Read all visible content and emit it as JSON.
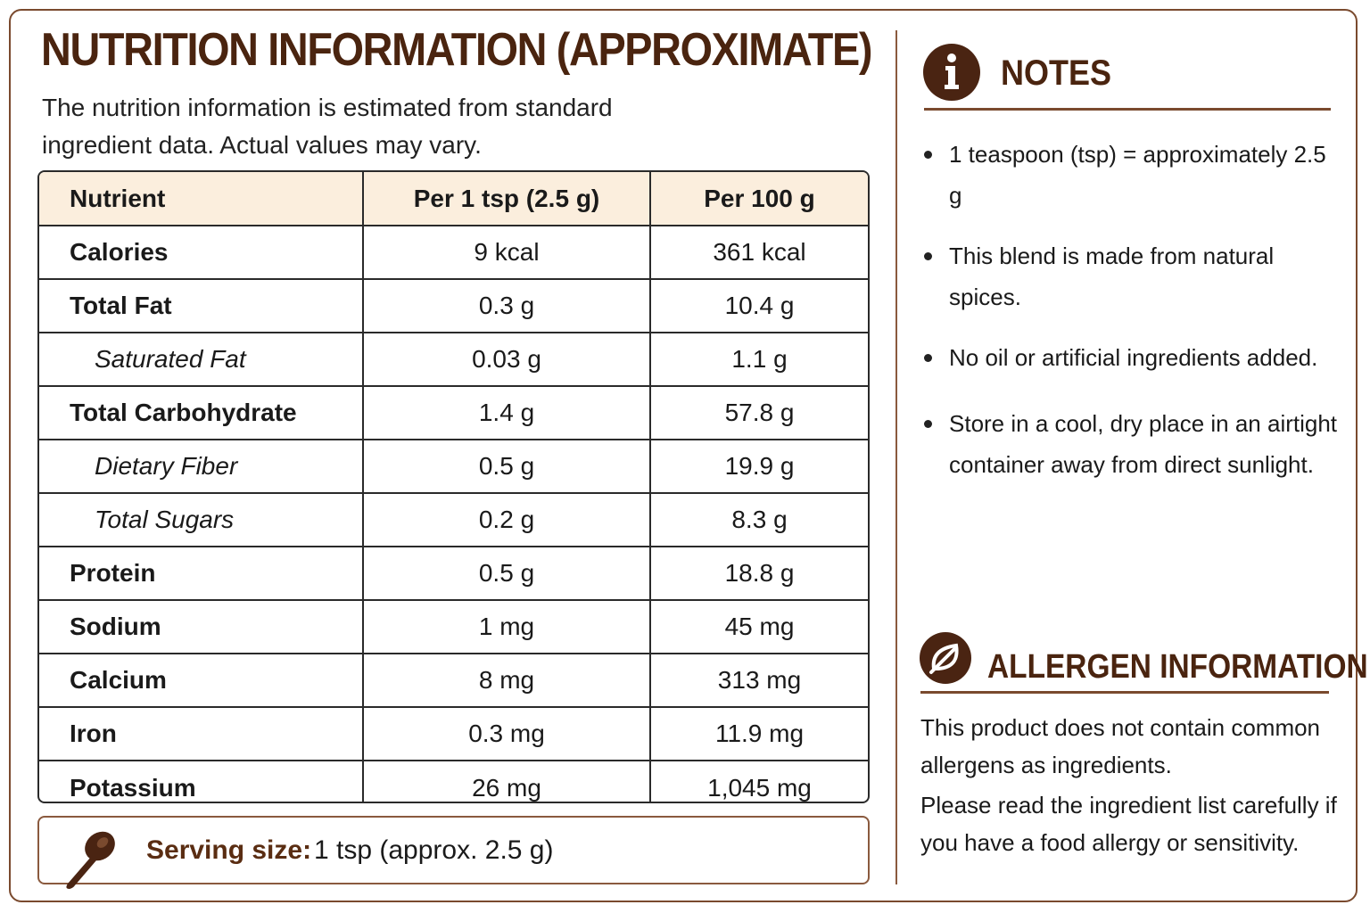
{
  "title": "NUTRITION INFORMATION (APPROXIMATE)",
  "subtitle": "The nutrition information is estimated from standard ingredient data. Actual values may vary.",
  "table": {
    "headers": [
      "Nutrient",
      "Per 1 tsp (2.5 g)",
      "Per 100 g"
    ],
    "rows": [
      {
        "nutrient": "Calories",
        "per_tsp": "9 kcal",
        "per_100g": "361 kcal"
      },
      {
        "nutrient": "Total Fat",
        "per_tsp": "0.3 g",
        "per_100g": "10.4 g"
      },
      {
        "nutrient": "Saturated Fat",
        "per_tsp": "0.03 g",
        "per_100g": "1.1 g"
      },
      {
        "nutrient": "Total Carbohydrate",
        "per_tsp": "1.4 g",
        "per_100g": "57.8 g"
      },
      {
        "nutrient": "Dietary Fiber",
        "per_tsp": "0.5 g",
        "per_100g": "19.9 g"
      },
      {
        "nutrient": "Total Sugars",
        "per_tsp": "0.2 g",
        "per_100g": "8.3 g"
      },
      {
        "nutrient": "Protein",
        "per_tsp": "0.5 g",
        "per_100g": "18.8 g"
      },
      {
        "nutrient": "Sodium",
        "per_tsp": "1 mg",
        "per_100g": "45 mg"
      },
      {
        "nutrient": "Calcium",
        "per_tsp": "8 mg",
        "per_100g": "313 mg"
      },
      {
        "nutrient": "Iron",
        "per_tsp": "0.3 mg",
        "per_100g": "11.9 mg"
      },
      {
        "nutrient": "Potassium",
        "per_tsp": "26 mg",
        "per_100g": "1,045 mg"
      }
    ]
  },
  "serving": {
    "label": "Serving size:",
    "value": "1 tsp (approx. 2.5 g)",
    "icon": "spoon-icon"
  },
  "notes": {
    "title": "NOTES",
    "icon": "info-icon",
    "items": [
      "1 teaspoon (tsp) = approximately 2.5 g",
      "This blend is made from natural spices.",
      "No oil or artificial ingredients added.",
      "Store in a cool, dry place in an airtight container away from direct sunlight."
    ]
  },
  "allergen": {
    "title": "ALLERGEN INFORMATION",
    "icon": "leaf-icon",
    "text1": "This product does not contain common allergens as ingredients.",
    "text2": "Please read the ingredient list carefully if you have a food allergy or sensitivity."
  },
  "colors": {
    "heading": "#4a240f",
    "accent": "#7a4a2e",
    "header_fill": "#fbeedd",
    "icon_fill": "#4a2412"
  }
}
